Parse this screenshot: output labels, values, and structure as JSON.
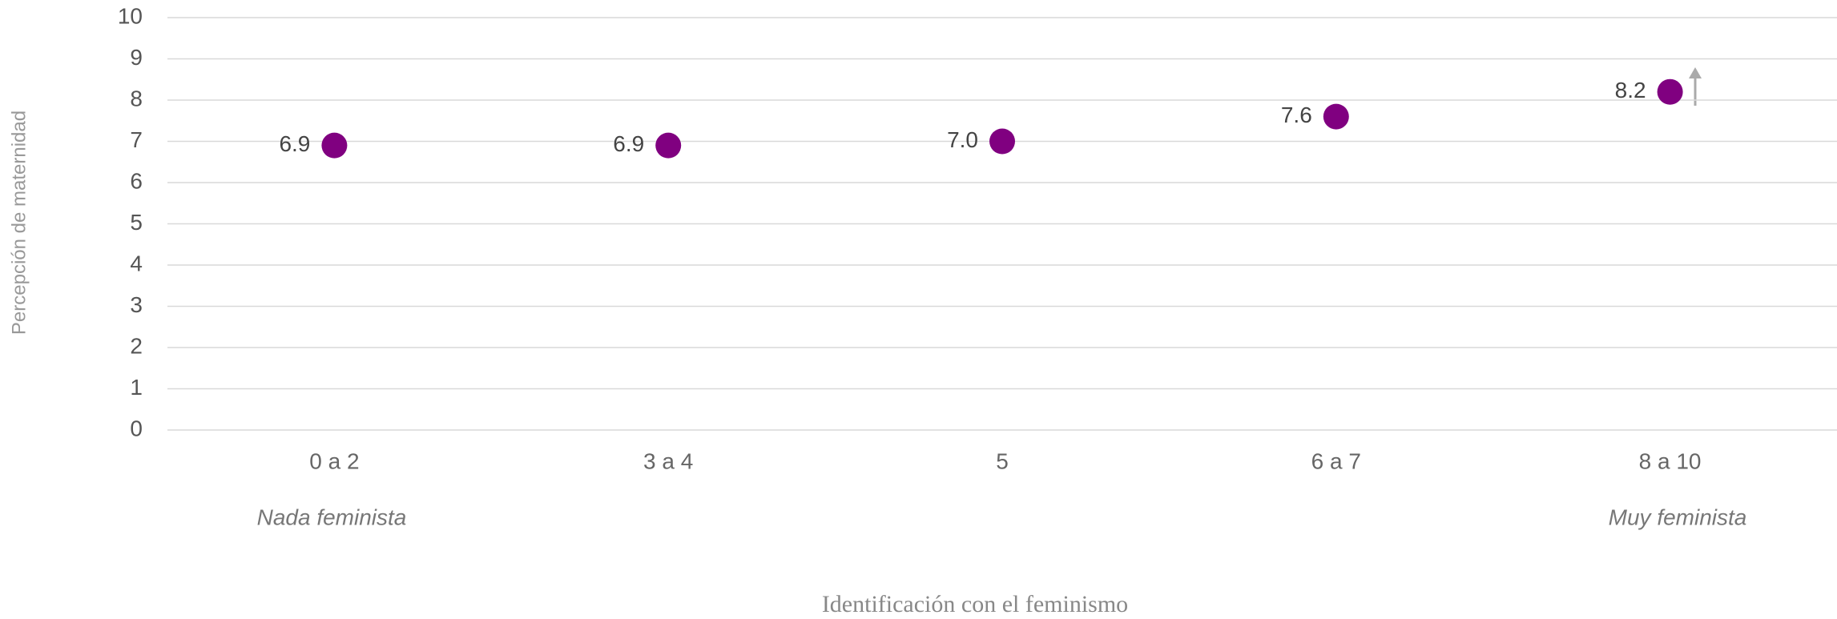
{
  "chart_data": {
    "type": "scatter",
    "xlabel": "Identificación con el feminismo",
    "ylabel": "Percepción de maternidad",
    "categories": [
      "0 a 2",
      "3 a 4",
      "5",
      "6 a 7",
      "8 a 10"
    ],
    "series": [
      {
        "name": "Percepción de maternidad",
        "color": "#800080",
        "values": [
          6.9,
          6.9,
          7.0,
          7.6,
          8.2
        ],
        "value_labels": [
          "6.9",
          "6.9",
          "7.0",
          "7.6",
          "8.2"
        ]
      }
    ],
    "annotations": [
      "Nada feminista",
      "Muy feminista"
    ],
    "ylim": [
      0,
      10
    ],
    "yticks": [
      0,
      1,
      2,
      3,
      4,
      5,
      6,
      7,
      8,
      9,
      10
    ],
    "grid": true
  }
}
